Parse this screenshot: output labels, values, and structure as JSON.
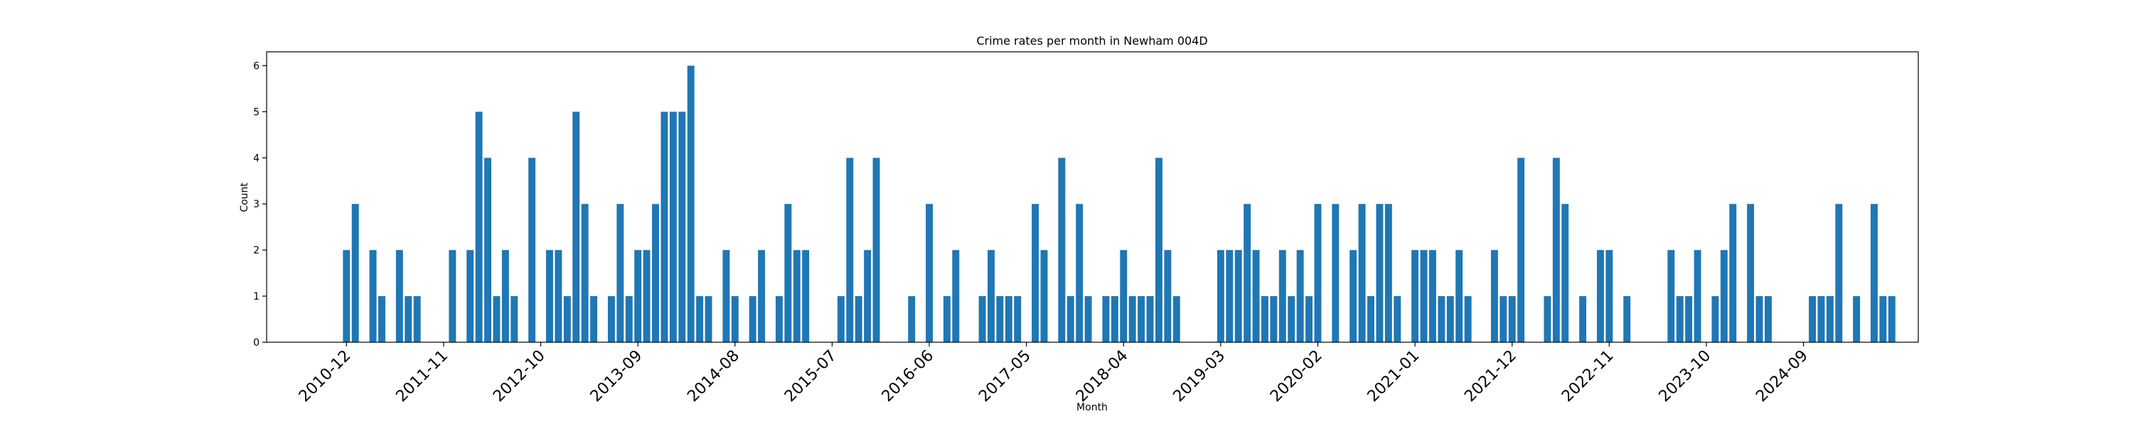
{
  "chart_data": {
    "type": "bar",
    "title": "Crime rates per month in Newham 004D",
    "xlabel": "Month",
    "ylabel": "Count",
    "ylim": [
      0,
      6.3
    ],
    "yticks": [
      0,
      1,
      2,
      3,
      4,
      5,
      6
    ],
    "xticks": [
      "2010-12",
      "2011-11",
      "2012-10",
      "2013-09",
      "2014-08",
      "2015-07",
      "2016-06",
      "2017-05",
      "2018-04",
      "2019-03",
      "2020-02",
      "2021-01",
      "2021-12",
      "2022-11",
      "2023-10",
      "2024-09"
    ],
    "grid": false,
    "color": "#1f77b4",
    "start_month": "2010-12",
    "values": [
      2,
      3,
      0,
      2,
      1,
      0,
      2,
      1,
      1,
      0,
      0,
      0,
      2,
      0,
      2,
      5,
      4,
      1,
      2,
      1,
      0,
      4,
      0,
      2,
      2,
      1,
      5,
      3,
      1,
      0,
      1,
      3,
      1,
      2,
      2,
      3,
      5,
      5,
      5,
      6,
      1,
      1,
      0,
      2,
      1,
      0,
      1,
      2,
      0,
      1,
      3,
      2,
      2,
      0,
      0,
      0,
      1,
      4,
      1,
      2,
      4,
      0,
      0,
      0,
      1,
      0,
      3,
      0,
      1,
      2,
      0,
      0,
      1,
      2,
      1,
      1,
      1,
      0,
      3,
      2,
      0,
      4,
      1,
      3,
      1,
      0,
      1,
      1,
      2,
      1,
      1,
      1,
      4,
      2,
      1,
      0,
      0,
      0,
      0,
      2,
      2,
      2,
      3,
      2,
      1,
      1,
      2,
      1,
      2,
      1,
      3,
      0,
      3,
      0,
      2,
      3,
      1,
      3,
      3,
      1,
      0,
      2,
      2,
      2,
      1,
      1,
      2,
      1,
      0,
      0,
      2,
      1,
      1,
      4,
      0,
      0,
      1,
      4,
      3,
      0,
      1,
      0,
      2,
      2,
      0,
      1,
      0,
      0,
      0,
      0,
      2,
      1,
      1,
      2,
      0,
      1,
      2,
      3,
      0,
      3,
      1,
      1,
      0,
      0,
      0,
      0,
      1,
      1,
      1,
      3,
      0,
      1,
      0,
      3,
      1,
      1
    ]
  }
}
